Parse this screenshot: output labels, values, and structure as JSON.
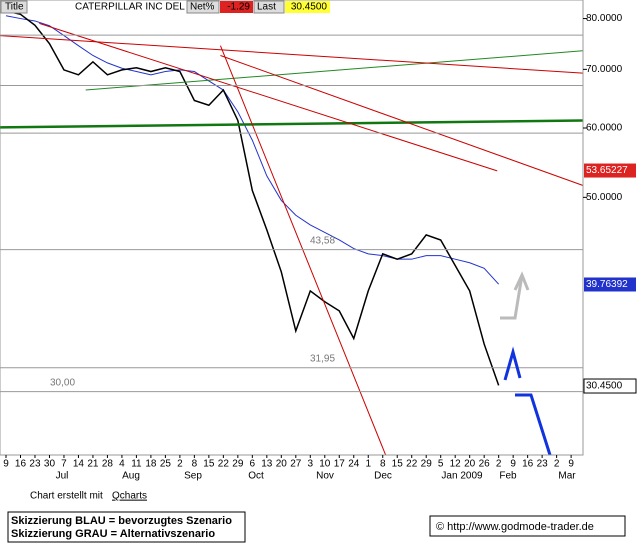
{
  "chart_data": {
    "type": "line",
    "log_scale": true,
    "header": {
      "label": "Title",
      "name": "CATERPILLAR INC DEL",
      "net_label": "Net%",
      "net_value": "-1.29",
      "last_label": "Last",
      "last_value": "30.4500"
    },
    "categories": [
      "9",
      "16",
      "23",
      "30",
      "7",
      "14",
      "21",
      "28",
      "4",
      "11",
      "18",
      "25",
      "2",
      "8",
      "15",
      "22",
      "29",
      "6",
      "13",
      "20",
      "27",
      "3",
      "10",
      "17",
      "24",
      "1",
      "8",
      "15",
      "22",
      "29",
      "5",
      "12",
      "20",
      "26",
      "2",
      "9",
      "16",
      "23",
      "2",
      "9"
    ],
    "months": [
      "Jul",
      "Aug",
      "Sep",
      "Oct",
      "Nov",
      "Dec",
      "Jan 2009",
      "Feb",
      "Mar"
    ],
    "series": [
      {
        "name": "CATERPILLAR INC DEL",
        "color": "#000000",
        "values": [
          81.6,
          80.9,
          78.6,
          74.9,
          69.9,
          69.0,
          71.4,
          69.0,
          69.9,
          70.3,
          69.6,
          70.3,
          69.6,
          64.5,
          63.7,
          66.3,
          61.2,
          50.9,
          45.9,
          41.1,
          35.2,
          39.1,
          38.0,
          37.1,
          34.5,
          39.1,
          43.1,
          42.5,
          43.1,
          45.3,
          44.7,
          41.8,
          39.1,
          34.0,
          30.5,
          null,
          null,
          null,
          null,
          null
        ]
      },
      {
        "name": "MA",
        "color": "#2233cc",
        "values": [
          80.6,
          80.0,
          79.5,
          78.5,
          76.5,
          74.5,
          72.6,
          71.2,
          70.2,
          69.6,
          69.0,
          69.6,
          69.9,
          69.6,
          67.9,
          66.3,
          62.6,
          58.1,
          52.9,
          49.6,
          47.7,
          46.5,
          45.6,
          44.7,
          43.7,
          43.1,
          42.9,
          42.5,
          42.5,
          42.9,
          42.9,
          42.5,
          42.1,
          41.5,
          39.8,
          null,
          null,
          null,
          null,
          null
        ]
      }
    ],
    "trendlines": [
      {
        "color": "#cc0000",
        "x": [
          -0.4,
          39.8
        ],
        "values": [
          76.5,
          69.3
        ]
      },
      {
        "color": "#cc0000",
        "x": [
          2.3,
          33.9
        ],
        "values": [
          79.0,
          53.6
        ]
      },
      {
        "color": "#cc0000",
        "x": [
          14.8,
          39.8
        ],
        "values": [
          72.6,
          51.6
        ]
      },
      {
        "color": "#cc0000",
        "x": [
          14.8,
          26.2
        ],
        "values": [
          74.5,
          25.4
        ]
      },
      {
        "color": "#228822",
        "x": [
          5.5,
          39.8
        ],
        "values": [
          66.3,
          73.5
        ]
      },
      {
        "color": "#117711",
        "x": [
          -0.4,
          39.8
        ],
        "values": [
          60.1,
          61.2
        ]
      }
    ],
    "levels": [
      {
        "value": 76.6
      },
      {
        "value": 67.1
      },
      {
        "value": 59.2
      },
      {
        "value": 43.58,
        "label": "43,58"
      },
      {
        "value": 31.95,
        "label": "31,95"
      },
      {
        "value": 30.0,
        "label": "30,00"
      }
    ],
    "ylim": [
      25.4,
      84
    ],
    "yticks": [
      {
        "value": 80,
        "label": "80.0000"
      },
      {
        "value": 70,
        "label": "70.0000"
      },
      {
        "value": 60,
        "label": "60.0000"
      },
      {
        "value": 50,
        "label": "50.0000"
      }
    ],
    "price_tags": [
      {
        "value": 53.65227,
        "label": "53.65227",
        "color": "#dd2222"
      },
      {
        "value": 39.76392,
        "label": "39.76392",
        "color": "#2233cc"
      },
      {
        "value": 30.45,
        "label": "30.4500",
        "color": "#ffffff"
      }
    ],
    "scale_label": "LOG",
    "credit": "Chart erstellt mit",
    "credit_link": "Qcharts",
    "legend": [
      "Skizzierung BLAU = bevorzugtes Szenario",
      "Skizzierung GRAU = Alternativszenario"
    ],
    "url": "© http://www.godmode-trader.de"
  }
}
